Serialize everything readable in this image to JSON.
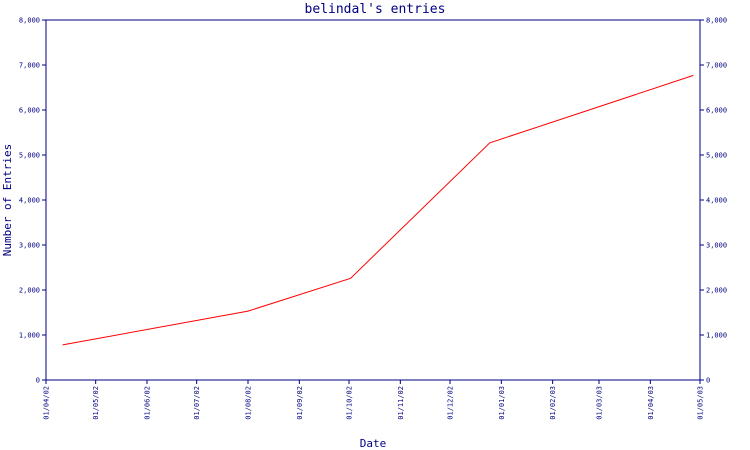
{
  "chart_data": {
    "type": "line",
    "title": "belindal's entries",
    "xlabel": "Date",
    "ylabel": "Number of Entries",
    "ylim": [
      0,
      8000
    ],
    "y_ticks": [
      "0",
      "1,000",
      "2,000",
      "3,000",
      "4,000",
      "5,000",
      "6,000",
      "7,000",
      "8,000"
    ],
    "x_ticks": [
      "01/04/02",
      "01/05/02",
      "01/06/02",
      "01/07/02",
      "01/08/02",
      "01/09/02",
      "01/10/02",
      "01/11/02",
      "01/12/02",
      "01/01/03",
      "01/02/03",
      "01/03/03",
      "01/04/03",
      "01/05/03"
    ],
    "grid": false,
    "legend": "none",
    "series": [
      {
        "color": "#ff0000",
        "points": [
          {
            "x": "2002-04-11",
            "y": 780
          },
          {
            "x": "2002-08-01",
            "y": 1530
          },
          {
            "x": "2002-10-02",
            "y": 2260
          },
          {
            "x": "2002-12-25",
            "y": 5270
          },
          {
            "x": "2003-04-27",
            "y": 6770
          }
        ]
      }
    ],
    "colors": {
      "axis": "#000080",
      "line": "#ff0000",
      "background": "#ffffff"
    }
  }
}
